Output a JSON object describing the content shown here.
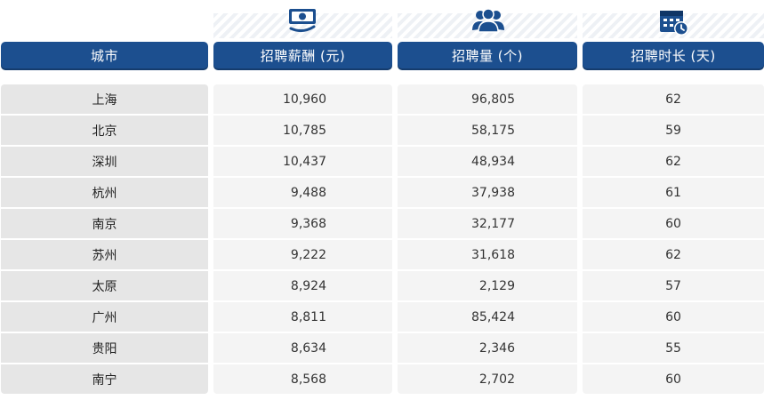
{
  "chart_data": {
    "type": "table",
    "columns": [
      "城市",
      "招聘薪酬 (元)",
      "招聘量 (个)",
      "招聘时长 (天)"
    ],
    "column_icons": [
      "",
      "money-icon",
      "people-icon",
      "calendar-clock-icon"
    ],
    "rows": [
      {
        "city": "上海",
        "salary": "10,960",
        "count": "96,805",
        "days": "62"
      },
      {
        "city": "北京",
        "salary": "10,785",
        "count": "58,175",
        "days": "59"
      },
      {
        "city": "深圳",
        "salary": "10,437",
        "count": "48,934",
        "days": "62"
      },
      {
        "city": "杭州",
        "salary": "9,488",
        "count": "37,938",
        "days": "61"
      },
      {
        "city": "南京",
        "salary": "9,368",
        "count": "32,177",
        "days": "60"
      },
      {
        "city": "苏州",
        "salary": "9,222",
        "count": "31,618",
        "days": "62"
      },
      {
        "city": "太原",
        "salary": "8,924",
        "count": "2,129",
        "days": "57"
      },
      {
        "city": "广州",
        "salary": "8,811",
        "count": "85,424",
        "days": "60"
      },
      {
        "city": "贵阳",
        "salary": "8,634",
        "count": "2,346",
        "days": "55"
      },
      {
        "city": "南宁",
        "salary": "8,568",
        "count": "2,702",
        "days": "60"
      }
    ]
  },
  "colors": {
    "header_bg": "#1c4f8f",
    "header_text": "#ffffff",
    "city_cell_bg": "#e6e6e6",
    "value_cell_bg": "#f4f4f4"
  }
}
